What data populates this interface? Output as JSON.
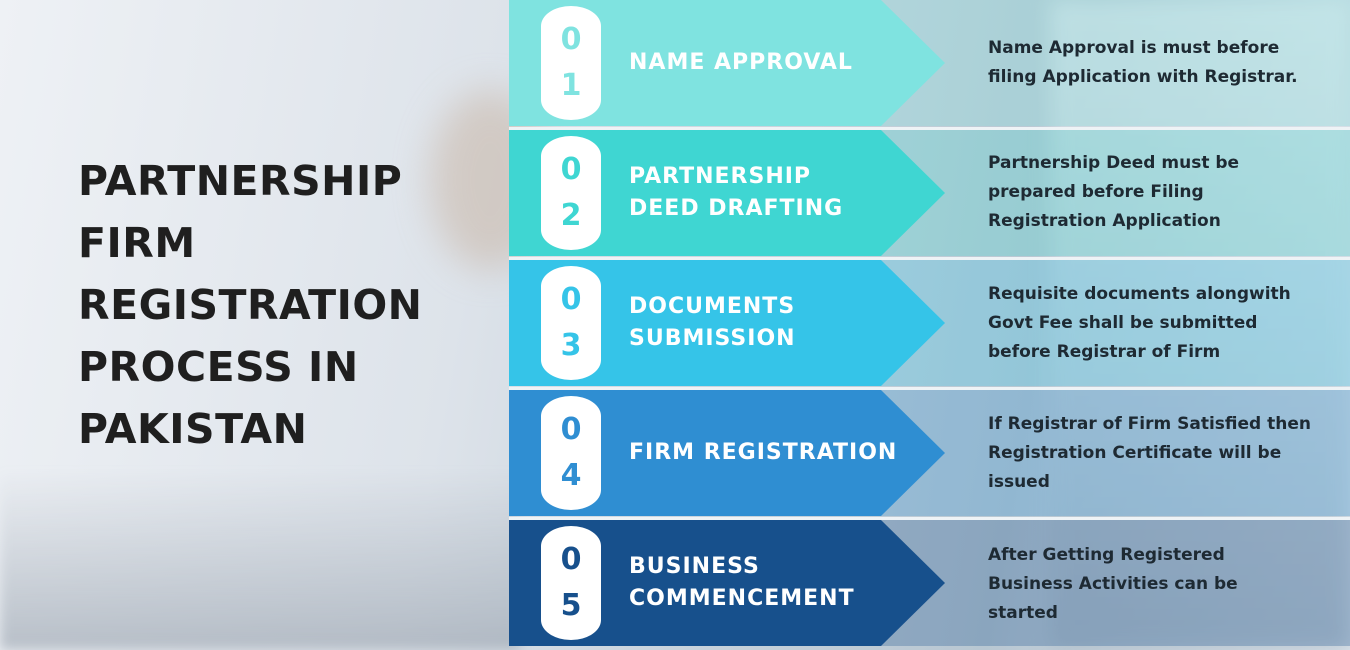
{
  "title_lines": [
    "PARTNERSHIP",
    "FIRM",
    "REGISTRATION",
    "PROCESS IN",
    "PAKISTAN"
  ],
  "colors": {
    "step1": "#7fe3e0",
    "step2": "#3fd6d2",
    "step3": "#35c4e8",
    "step4": "#2f8ed2",
    "step5": "#17508c",
    "title": "#1f1f1f",
    "desc_text": "#1e2a33"
  },
  "steps": [
    {
      "digits": [
        "0",
        "1"
      ],
      "label_lines": [
        "NAME APPROVAL"
      ],
      "desc_lines": [
        "Name Approval is must before",
        "filing Application with Registrar."
      ]
    },
    {
      "digits": [
        "0",
        "2"
      ],
      "label_lines": [
        "PARTNERSHIP",
        "DEED DRAFTING"
      ],
      "desc_lines": [
        "Partnership Deed must be",
        "prepared before Filing",
        "Registration Application"
      ]
    },
    {
      "digits": [
        "0",
        "3"
      ],
      "label_lines": [
        "DOCUMENTS",
        "SUBMISSION"
      ],
      "desc_lines": [
        "Requisite  documents alongwith",
        "Govt Fee shall be submitted",
        "before Registrar of Firm"
      ]
    },
    {
      "digits": [
        "0",
        "4"
      ],
      "label_lines": [
        "FIRM REGISTRATION"
      ],
      "desc_lines": [
        "If Registrar of Firm Satisfied then",
        "Registration Certificate will be",
        "issued"
      ]
    },
    {
      "digits": [
        "0",
        "5"
      ],
      "label_lines": [
        "BUSINESS",
        "COMMENCEMENT"
      ],
      "desc_lines": [
        "After Getting Registered",
        "Business Activities can be",
        "started"
      ]
    }
  ]
}
